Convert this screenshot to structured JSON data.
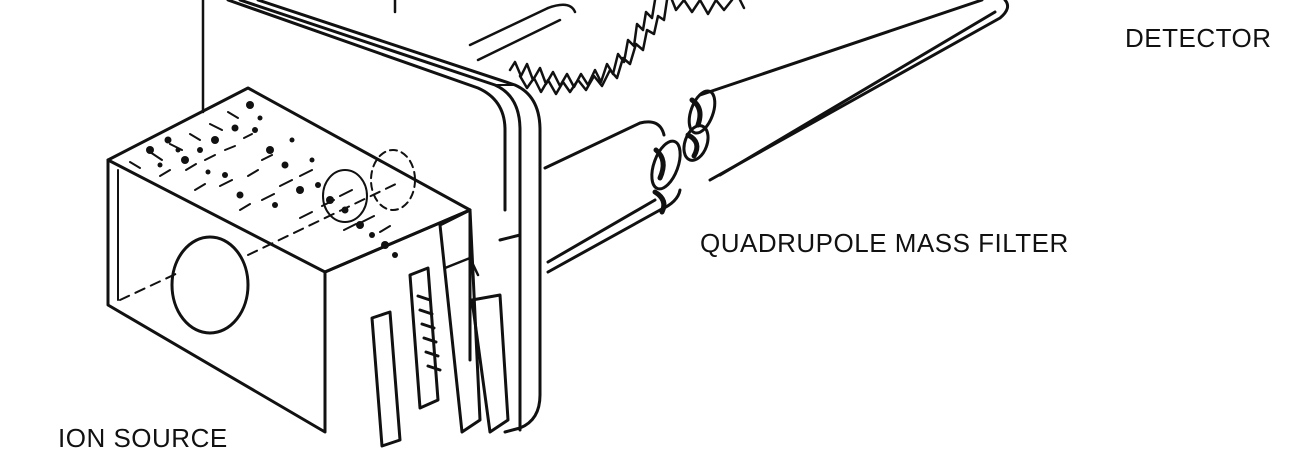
{
  "labels": {
    "detector": "DETECTOR",
    "quadrupole_mass_filter": "QUADRUPOLE MASS FILTER",
    "ion_source": "ION SOURCE"
  },
  "colors": {
    "ink": "#111111",
    "paper": "#ffffff"
  }
}
